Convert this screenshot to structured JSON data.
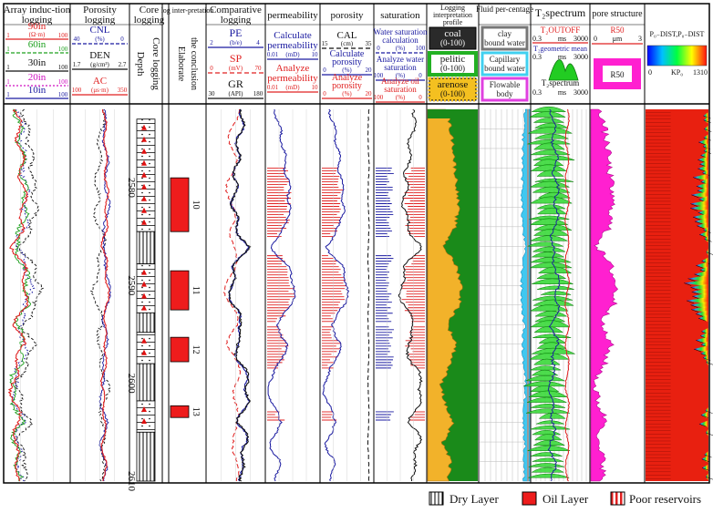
{
  "colors": {
    "red": "#e02020",
    "blue": "#1a1aa0",
    "dark": "#111111",
    "green": "#1fa01f",
    "magenta": "#d010c0",
    "orange": "#f0b020",
    "darkgreen": "#0a6a0a",
    "cyan": "#40d0f0",
    "pore": "#ff20d0",
    "oil": "#ee1c1c"
  },
  "tracks": [
    {
      "id": "induction",
      "title": "Array induc-tion logging",
      "curves": [
        {
          "name": "90in",
          "min": "1",
          "unit": "(Ω·m)",
          "max": "100",
          "color": "#e02020"
        },
        {
          "name": "60in",
          "min": "1",
          "unit": "",
          "max": "100",
          "color": "#1fa01f"
        },
        {
          "name": "30in",
          "min": "1",
          "unit": "",
          "max": "100",
          "color": "#111111"
        },
        {
          "name": "20in",
          "min": "1",
          "unit": "",
          "max": "100",
          "color": "#d010c0"
        },
        {
          "name": "10in",
          "min": "1",
          "unit": "",
          "max": "100",
          "color": "#1a1aa0"
        }
      ]
    },
    {
      "id": "porosity",
      "title": "Porosity logging",
      "curves": [
        {
          "name": "CNL",
          "min": "40",
          "unit": "(%)",
          "max": "0",
          "color": "#1a1aa0"
        },
        {
          "name": "DEN",
          "min": "1.7",
          "unit": "(g/cm³)",
          "max": "2.7",
          "color": "#111111"
        },
        {
          "name": "AC",
          "min": "100",
          "unit": "(μs·m)",
          "max": "350",
          "color": "#e02020"
        }
      ]
    },
    {
      "id": "core",
      "title": "Core logging",
      "sub": "Core logging"
    },
    {
      "id": "depth",
      "title": "Depth"
    },
    {
      "id": "interp",
      "title": "log inter-pretation",
      "sub": "Elaborate the conclusion"
    },
    {
      "id": "comparative",
      "title": "Comparative logging",
      "curves": [
        {
          "name": "PE",
          "min": "2",
          "unit": "(b/e)",
          "max": "4",
          "color": "#1a1aa0"
        },
        {
          "name": "SP",
          "min": "0",
          "unit": "(mV)",
          "max": "70",
          "color": "#e02020"
        },
        {
          "name": "GR",
          "min": "30",
          "unit": "(API)",
          "max": "180",
          "color": "#111111"
        }
      ]
    },
    {
      "id": "permeability",
      "title": "permeability",
      "curves": [
        {
          "name": "Calculate permeability",
          "min": "0.01",
          "unit": "(mD)",
          "max": "10",
          "color": "#1a1aa0"
        },
        {
          "name": "Analyze permeability",
          "min": "0.01",
          "unit": "(mD)",
          "max": "10",
          "color": "#e02020"
        }
      ]
    },
    {
      "id": "porosity2",
      "title": "porosity",
      "curves": [
        {
          "name": "CAL",
          "min": "15",
          "unit": "(cm)",
          "max": "35",
          "color": "#111111"
        },
        {
          "name": "Calculate porosity",
          "min": "0",
          "unit": "(%)",
          "max": "20",
          "color": "#1a1aa0"
        },
        {
          "name": "Analyze porosity",
          "min": "0",
          "unit": "(%)",
          "max": "20",
          "color": "#e02020"
        }
      ]
    },
    {
      "id": "saturation",
      "title": "saturation",
      "curves": [
        {
          "name": "Water saturation calculation",
          "min": "0",
          "unit": "(%)",
          "max": "100",
          "color": "#1a1aa0"
        },
        {
          "name": "Analyze water saturation",
          "min": "100",
          "unit": "(%)",
          "max": "0",
          "color": "#1a1aa0"
        },
        {
          "name": "Analyze oil saturation",
          "min": "100",
          "unit": "(%)",
          "max": "0",
          "color": "#e02020"
        }
      ]
    },
    {
      "id": "profile",
      "title": "Logging interpretation profile",
      "items": [
        {
          "name": "coal",
          "range": "(0-100)"
        },
        {
          "name": "pelitic",
          "range": "(0-100)"
        },
        {
          "name": "arenose",
          "range": "(0-100)"
        }
      ]
    },
    {
      "id": "fluid",
      "title": "Fluid per-centage",
      "items": [
        "clay bound water",
        "Capillary bound water",
        "Flowable body"
      ]
    },
    {
      "id": "t2",
      "title": "T₂spectrum",
      "items": [
        {
          "name": "T₂OUTOFF",
          "min": "0.3",
          "unit": "ms",
          "max": "3000"
        },
        {
          "name": "T₂geometric mean",
          "min": "0.3",
          "unit": "ms",
          "max": "3000"
        },
        {
          "name": "T₂spectrum",
          "min": "0.3",
          "unit": "ms",
          "max": "3000"
        }
      ]
    },
    {
      "id": "pore",
      "title": "pore structure",
      "items": [
        {
          "name": "R50",
          "min": "0",
          "unit": "μm",
          "max": "3"
        },
        {
          "name": "R50"
        }
      ]
    },
    {
      "id": "pdist",
      "title": "P₀₋DIST,P₀₋DIST",
      "scale_min": "0",
      "scale_label": "KP₀",
      "scale_max": "1310"
    }
  ],
  "chart_data": {
    "type": "well-log",
    "depth_axis": {
      "label": "Depth",
      "min": 2572,
      "max": 2610,
      "ticks": [
        2580,
        2590,
        2600,
        2610
      ]
    },
    "conclusion_layers": [
      {
        "label": "10",
        "top": 2579.0,
        "bottom": 2584.5
      },
      {
        "label": "11",
        "top": 2588.5,
        "bottom": 2592.5
      },
      {
        "label": "12",
        "top": 2595.3,
        "bottom": 2597.8
      },
      {
        "label": "13",
        "top": 2602.3,
        "bottom": 2603.5
      }
    ],
    "core_intervals": [
      {
        "top": 2573.0,
        "bottom": 2584.5,
        "type": "Oil Layer"
      },
      {
        "top": 2584.5,
        "bottom": 2587.8,
        "type": "Dry Layer"
      },
      {
        "top": 2587.8,
        "bottom": 2592.8,
        "type": "Oil Layer"
      },
      {
        "top": 2592.8,
        "bottom": 2594.8,
        "type": "Dry Layer"
      },
      {
        "top": 2594.8,
        "bottom": 2598.0,
        "type": "Oil Layer"
      },
      {
        "top": 2598.0,
        "bottom": 2601.8,
        "type": "Dry Layer"
      },
      {
        "top": 2601.8,
        "bottom": 2605.0,
        "type": "Oil Layer"
      },
      {
        "top": 2605.0,
        "bottom": 2610.0,
        "type": "Dry Layer"
      }
    ],
    "legend": [
      {
        "label": "Dry Layer",
        "pattern": "vertical-lines"
      },
      {
        "label": "Oil Layer",
        "pattern": "solid-red"
      },
      {
        "label": "Poor reservoirs",
        "pattern": "red-stripes"
      }
    ],
    "gr_profile": {
      "depths": [
        2572,
        2574,
        2576,
        2578,
        2580,
        2582,
        2584,
        2586,
        2588,
        2590,
        2592,
        2594,
        2596,
        2598,
        2600,
        2602,
        2604,
        2606,
        2608,
        2610
      ],
      "values": [
        0.62,
        0.55,
        0.48,
        0.45,
        0.4,
        0.38,
        0.45,
        0.7,
        0.42,
        0.3,
        0.35,
        0.62,
        0.42,
        0.55,
        0.75,
        0.68,
        0.5,
        0.72,
        0.55,
        0.6
      ]
    }
  }
}
